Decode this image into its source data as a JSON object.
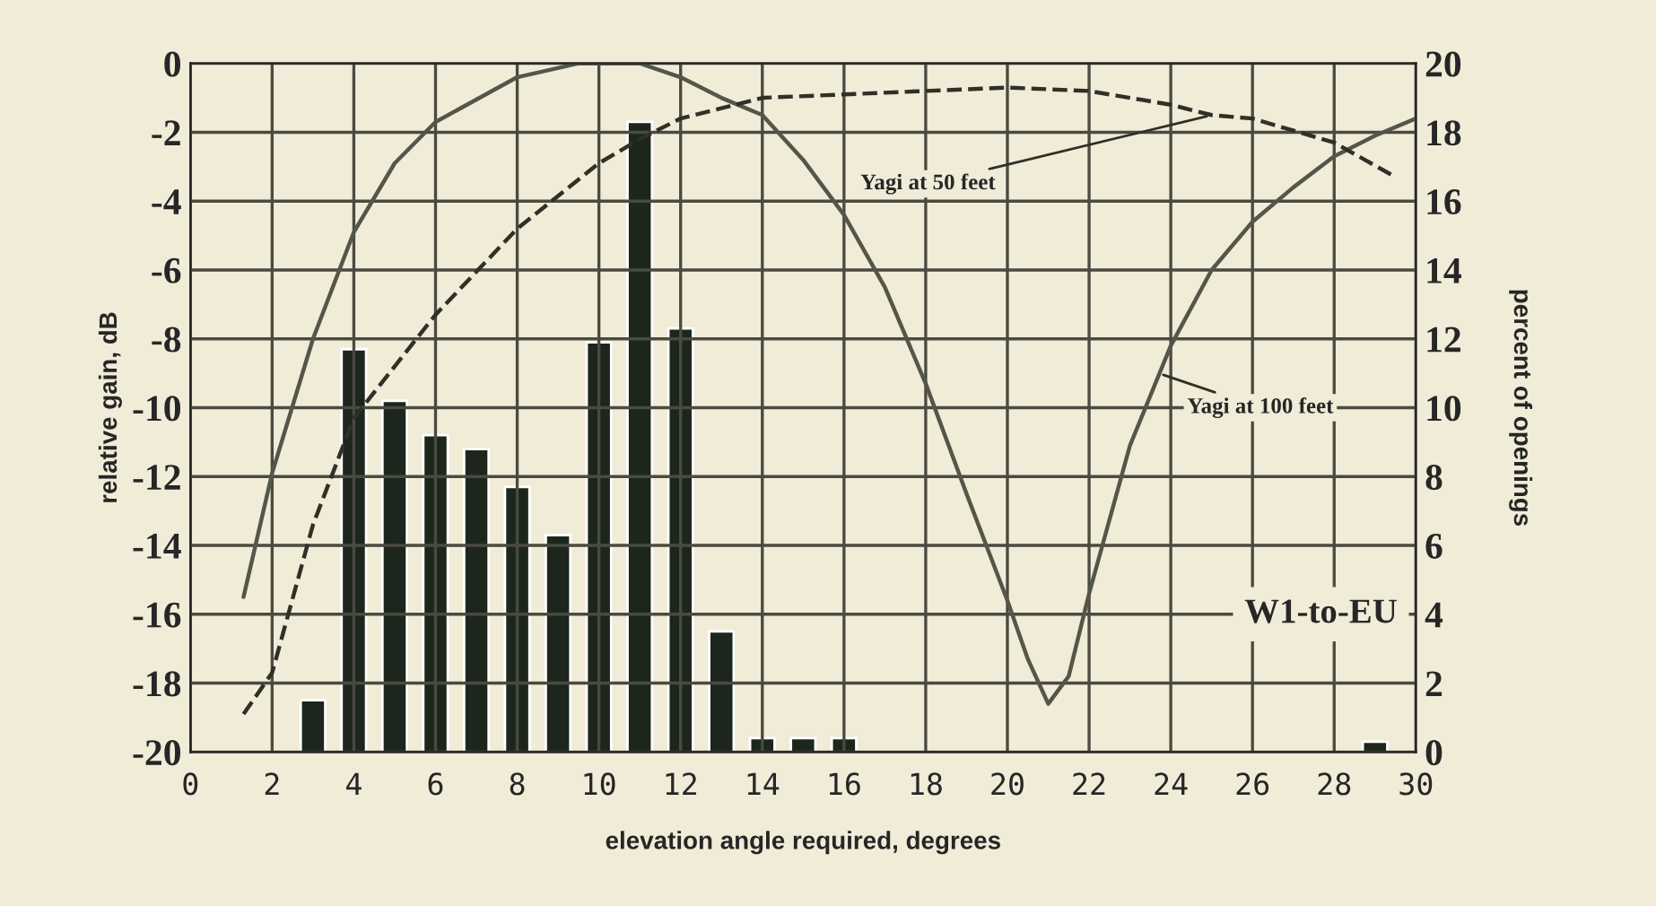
{
  "chart_data": {
    "type": "line",
    "xlabel": "elevation angle required, degrees",
    "ylabel": "relative gain, dB",
    "y2label": "percent of openings",
    "xlim": [
      0,
      30
    ],
    "xticks": [
      0,
      2,
      4,
      6,
      8,
      10,
      12,
      14,
      16,
      18,
      20,
      22,
      24,
      26,
      28,
      30
    ],
    "ylim": [
      -20,
      0
    ],
    "yticks": [
      -20,
      -18,
      -16,
      -14,
      -12,
      -10,
      -8,
      -6,
      -4,
      -2,
      0
    ],
    "y2lim": [
      0,
      20
    ],
    "y2ticks": [
      0,
      2,
      4,
      6,
      8,
      10,
      12,
      14,
      16,
      18,
      20
    ],
    "grid": true,
    "series": [
      {
        "type": "bar",
        "axis": "y2",
        "color": "#1c261c",
        "x": [
          3,
          4,
          5,
          6,
          7,
          8,
          9,
          10,
          11,
          12,
          13,
          14,
          15,
          16,
          29
        ],
        "values": [
          1.5,
          11.7,
          10.2,
          9.2,
          8.8,
          7.7,
          6.3,
          11.9,
          18.3,
          12.3,
          3.5,
          0.4,
          0.4,
          0.4,
          0.3
        ]
      },
      {
        "line_style": "solid",
        "color": "#55564a",
        "x": [
          1.3,
          2,
          3,
          4,
          5,
          6,
          8,
          9.5,
          11,
          12,
          13,
          14,
          15,
          16,
          17,
          18,
          19,
          20,
          20.5,
          21,
          21.5,
          22,
          23,
          24,
          25,
          26,
          27,
          28,
          29,
          30
        ],
        "values": [
          -15.5,
          -11.9,
          -8.0,
          -4.9,
          -2.9,
          -1.7,
          -0.4,
          0,
          0,
          -0.4,
          -1.0,
          -1.5,
          -2.8,
          -4.4,
          -6.5,
          -9.3,
          -12.5,
          -15.6,
          -17.3,
          -18.6,
          -17.8,
          -15.4,
          -11.1,
          -8.2,
          -6.0,
          -4.6,
          -3.6,
          -2.7,
          -2.1,
          -1.6
        ]
      },
      {
        "line_style": "dashed",
        "color": "#303028",
        "x": [
          1.3,
          2,
          3,
          4,
          6,
          8,
          10,
          11,
          12,
          14,
          16,
          18,
          20,
          22,
          24,
          25,
          26,
          28,
          29.5
        ],
        "values": [
          -18.9,
          -17.7,
          -13.4,
          -10.3,
          -7.3,
          -4.8,
          -2.9,
          -2.2,
          -1.6,
          -1.0,
          -0.9,
          -0.8,
          -0.7,
          -0.8,
          -1.2,
          -1.5,
          -1.6,
          -2.3,
          -3.3
        ]
      }
    ],
    "annotations": [
      {
        "text": "Yagi at 50 feet",
        "x": 25,
        "y": -1.5
      },
      {
        "text": "Yagi at 100 feet",
        "x": 23.7,
        "y": -9
      },
      "W1-to-EU"
    ]
  }
}
